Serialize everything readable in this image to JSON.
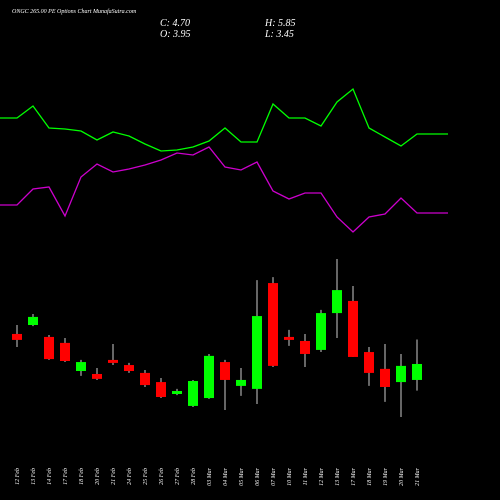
{
  "chart_data": {
    "type": "candlestick",
    "title": "ONGC 265.00 PE Options Chart MunafaSutra.com",
    "summary": [
      "C: 4.70",
      "H: 5.85",
      "O: 3.95",
      "L: 3.45"
    ],
    "categories": [
      "12 Feb",
      "13 Feb",
      "14 Feb",
      "17 Feb",
      "18 Feb",
      "20 Feb",
      "21 Feb",
      "24 Feb",
      "25 Feb",
      "26 Feb",
      "27 Feb",
      "28 Feb",
      "03 Mar",
      "04 Mar",
      "05 Mar",
      "06 Mar",
      "07 Mar",
      "10 Mar",
      "11 Mar",
      "12 Mar",
      "13 Mar",
      "17 Mar",
      "18 Mar",
      "19 Mar",
      "20 Mar",
      "21 Mar"
    ],
    "open": [
      6.11,
      6.53,
      5.97,
      5.69,
      4.37,
      4.23,
      4.89,
      4.65,
      4.28,
      3.85,
      3.29,
      2.73,
      3.1,
      4.79,
      3.67,
      3.53,
      8.5,
      5.97,
      5.78,
      5.36,
      7.09,
      7.66,
      5.26,
      4.47,
      3.85,
      3.95
    ],
    "high": [
      6.53,
      7.05,
      6.06,
      5.92,
      4.89,
      4.51,
      5.64,
      4.75,
      4.42,
      4.04,
      3.53,
      3.95,
      5.17,
      4.89,
      4.51,
      8.64,
      8.78,
      6.3,
      6.11,
      7.24,
      9.63,
      8.36,
      5.5,
      5.64,
      5.17,
      5.85
    ],
    "low": [
      5.5,
      6.48,
      4.89,
      4.79,
      4.14,
      3.95,
      4.65,
      4.28,
      3.62,
      3.1,
      3.24,
      2.68,
      3.06,
      2.54,
      3.2,
      2.82,
      4.56,
      5.55,
      4.56,
      5.26,
      5.92,
      5.03,
      3.67,
      2.92,
      2.21,
      3.45
    ],
    "close": [
      5.83,
      6.91,
      4.93,
      4.84,
      4.79,
      4.0,
      4.75,
      4.37,
      3.71,
      3.15,
      3.43,
      3.9,
      5.08,
      3.95,
      3.95,
      6.95,
      4.61,
      5.83,
      5.17,
      7.09,
      8.17,
      5.03,
      4.28,
      3.62,
      4.61,
      4.7
    ],
    "up_color": "#00ff00",
    "down_color": "#ff0000",
    "lines": [
      {
        "color": "#00ff00",
        "values": [
          182,
          194,
          172,
          171,
          169,
          160,
          168,
          164,
          156,
          149,
          150,
          153,
          159,
          172,
          158,
          158,
          196,
          182,
          182,
          174,
          198,
          211,
          172,
          163,
          154,
          166
        ]
      },
      {
        "color": "#cc00cc",
        "values": [
          95,
          111,
          113,
          84,
          123,
          136,
          128,
          131,
          135,
          140,
          147,
          145,
          153,
          133,
          130,
          138,
          109,
          101,
          107,
          107,
          83,
          68,
          83,
          86,
          102,
          87
        ]
      }
    ]
  }
}
